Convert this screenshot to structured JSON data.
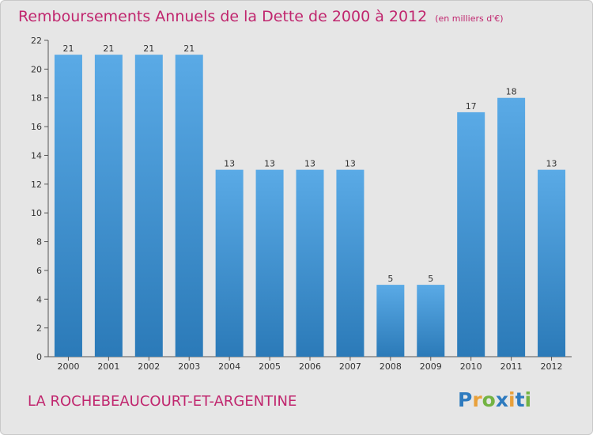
{
  "title": "Remboursements Annuels de la Dette de 2000 à 2012",
  "unit": "(en milliers d'€)",
  "commune": "LA ROCHEBEAUCOURT-ET-ARGENTINE",
  "logo": {
    "text": "Proxiti",
    "letters": [
      {
        "char": "P",
        "color": "#2e7bbf"
      },
      {
        "char": "r",
        "color": "#e8a03a"
      },
      {
        "char": "o",
        "color": "#73b343"
      },
      {
        "char": "x",
        "color": "#2e7bbf"
      },
      {
        "char": "i",
        "color": "#e8a03a"
      },
      {
        "char": "t",
        "color": "#2e7bbf"
      },
      {
        "char": "i",
        "color": "#73b343"
      }
    ]
  },
  "colors": {
    "accent": "#c0266e",
    "bar_top": "#5aaae6",
    "bar_bottom": "#2b7ab8",
    "background": "#e6e6e6"
  },
  "chart_data": {
    "type": "bar",
    "categories": [
      "2000",
      "2001",
      "2002",
      "2003",
      "2004",
      "2005",
      "2006",
      "2007",
      "2008",
      "2009",
      "2010",
      "2011",
      "2012"
    ],
    "values": [
      21,
      21,
      21,
      21,
      13,
      13,
      13,
      13,
      5,
      5,
      17,
      18,
      13
    ],
    "ylim": [
      0,
      22
    ],
    "yticks": [
      0,
      2,
      4,
      6,
      8,
      10,
      12,
      14,
      16,
      18,
      20,
      22
    ],
    "grid": false,
    "data_labels": true
  }
}
